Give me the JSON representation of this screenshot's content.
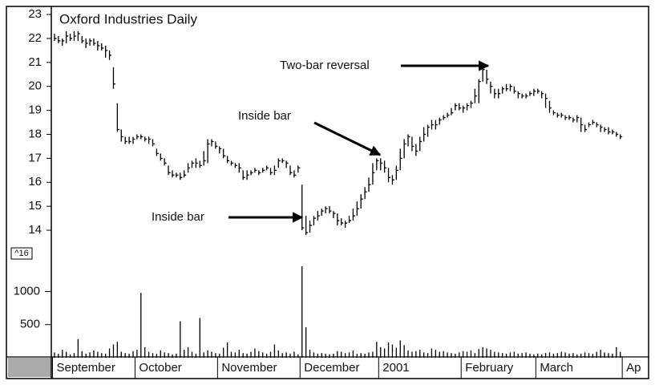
{
  "chart_data": {
    "type": "ohlc",
    "title": "Oxford Industries Daily",
    "color": "#000000",
    "x": [
      0,
      1,
      2,
      3,
      4,
      5,
      6,
      7,
      8,
      9,
      10,
      11,
      12,
      13,
      14,
      15,
      16,
      17,
      18,
      19,
      20,
      21,
      22,
      23,
      24,
      25,
      26,
      27,
      28,
      29,
      30,
      31,
      32,
      33,
      34,
      35,
      36,
      37,
      38,
      39,
      40,
      41,
      42,
      43,
      44,
      45,
      46,
      47,
      48,
      49,
      50,
      51,
      52,
      53,
      54,
      55,
      56,
      57,
      58,
      59,
      60,
      61,
      62,
      63,
      64,
      65,
      66,
      67,
      68,
      69,
      70,
      71,
      72,
      73,
      74,
      75,
      76,
      77,
      78,
      79,
      80,
      81,
      82,
      83,
      84,
      85,
      86,
      87,
      88,
      89,
      90,
      91,
      92,
      93,
      94,
      95,
      96,
      97,
      98,
      99,
      100,
      101,
      102,
      103,
      104,
      105,
      106,
      107,
      108,
      109,
      110,
      111,
      112,
      113,
      114,
      115,
      116,
      117,
      118,
      119,
      120,
      121,
      122,
      123,
      124,
      125,
      126,
      127,
      128,
      129,
      130,
      131,
      132,
      133,
      134,
      135,
      136,
      137,
      138,
      139,
      140,
      141,
      142,
      143,
      144
    ],
    "high": [
      22.2,
      22.1,
      22.0,
      22.3,
      22.2,
      22.3,
      22.3,
      22.1,
      22.0,
      22.0,
      22.0,
      21.9,
      21.8,
      21.7,
      21.5,
      20.8,
      19.3,
      18.2,
      17.9,
      17.9,
      17.9,
      18.0,
      18.0,
      17.9,
      17.9,
      17.8,
      17.4,
      17.2,
      17.0,
      16.7,
      16.5,
      16.4,
      16.4,
      16.5,
      16.8,
      16.9,
      17.0,
      16.9,
      17.3,
      17.8,
      17.8,
      17.7,
      17.5,
      17.4,
      17.1,
      16.9,
      16.8,
      16.8,
      16.5,
      16.5,
      16.5,
      16.6,
      16.5,
      16.6,
      16.7,
      16.6,
      16.7,
      17.0,
      17.0,
      16.9,
      16.7,
      16.5,
      16.7,
      15.9,
      14.6,
      14.4,
      14.6,
      14.8,
      14.9,
      15.0,
      15.0,
      14.8,
      14.7,
      14.5,
      14.4,
      14.6,
      14.9,
      15.2,
      15.5,
      15.8,
      16.2,
      16.8,
      17.0,
      17.0,
      16.9,
      16.6,
      16.3,
      16.7,
      17.4,
      17.8,
      18.0,
      17.9,
      17.6,
      17.9,
      18.3,
      18.4,
      18.6,
      18.6,
      18.7,
      18.8,
      18.9,
      19.1,
      19.3,
      19.3,
      19.2,
      19.3,
      19.4,
      19.9,
      20.3,
      20.8,
      20.7,
      20.2,
      19.9,
      19.9,
      20.0,
      20.1,
      20.1,
      20.0,
      19.8,
      19.7,
      19.7,
      19.8,
      19.9,
      19.9,
      19.8,
      19.7,
      19.4,
      19.0,
      18.9,
      18.9,
      18.8,
      18.8,
      18.7,
      18.8,
      18.7,
      18.4,
      18.5,
      18.6,
      18.5,
      18.4,
      18.3,
      18.3,
      18.2,
      18.1,
      18.0
    ],
    "low": [
      21.9,
      21.8,
      21.7,
      21.8,
      21.9,
      21.9,
      21.9,
      21.8,
      21.6,
      21.7,
      21.7,
      21.5,
      21.5,
      21.2,
      21.1,
      19.9,
      18.1,
      17.7,
      17.6,
      17.6,
      17.6,
      17.8,
      17.8,
      17.7,
      17.6,
      17.5,
      17.1,
      16.9,
      16.7,
      16.3,
      16.2,
      16.2,
      16.1,
      16.2,
      16.4,
      16.6,
      16.6,
      16.6,
      16.7,
      16.8,
      17.5,
      17.4,
      17.2,
      17.0,
      16.8,
      16.7,
      16.6,
      16.4,
      16.1,
      16.1,
      16.3,
      16.4,
      16.3,
      16.4,
      16.5,
      16.3,
      16.3,
      16.6,
      16.8,
      16.6,
      16.3,
      16.2,
      16.4,
      14.0,
      13.8,
      13.9,
      14.2,
      14.4,
      14.6,
      14.7,
      14.7,
      14.5,
      14.2,
      14.2,
      14.1,
      14.3,
      14.4,
      14.6,
      14.9,
      15.3,
      15.6,
      15.9,
      16.5,
      16.5,
      16.4,
      16.0,
      15.9,
      16.1,
      16.5,
      17.0,
      17.5,
      17.3,
      17.1,
      17.3,
      17.7,
      17.9,
      18.2,
      18.2,
      18.4,
      18.6,
      18.7,
      18.8,
      19.0,
      19.0,
      18.9,
      19.0,
      19.1,
      19.3,
      19.3,
      20.2,
      20.1,
      19.7,
      19.5,
      19.5,
      19.7,
      19.8,
      19.8,
      19.7,
      19.5,
      19.5,
      19.5,
      19.6,
      19.6,
      19.7,
      19.5,
      19.1,
      18.9,
      18.8,
      18.7,
      18.7,
      18.6,
      18.6,
      18.5,
      18.5,
      18.1,
      18.1,
      18.3,
      18.4,
      18.3,
      18.1,
      18.1,
      18.0,
      18.0,
      17.9,
      17.8
    ],
    "close": [
      22.0,
      21.9,
      21.9,
      22.1,
      22.0,
      22.1,
      22.2,
      21.9,
      21.8,
      21.9,
      21.8,
      21.7,
      21.6,
      21.5,
      21.3,
      20.1,
      18.2,
      17.9,
      17.7,
      17.7,
      17.8,
      17.9,
      17.9,
      17.8,
      17.8,
      17.6,
      17.2,
      17.0,
      16.8,
      16.4,
      16.3,
      16.3,
      16.2,
      16.3,
      16.6,
      16.8,
      16.8,
      16.7,
      16.9,
      17.6,
      17.7,
      17.5,
      17.4,
      17.1,
      16.9,
      16.8,
      16.7,
      16.6,
      16.2,
      16.3,
      16.4,
      16.5,
      16.4,
      16.5,
      16.6,
      16.4,
      16.5,
      16.9,
      16.9,
      16.8,
      16.4,
      16.3,
      16.6,
      14.1,
      13.9,
      14.2,
      14.5,
      14.6,
      14.8,
      14.9,
      14.8,
      14.7,
      14.4,
      14.3,
      14.3,
      14.4,
      14.6,
      14.9,
      15.3,
      15.6,
      15.9,
      16.4,
      16.9,
      16.8,
      16.6,
      16.2,
      16.1,
      16.5,
      17.0,
      17.6,
      17.9,
      17.5,
      17.3,
      17.7,
      18.0,
      18.3,
      18.4,
      18.4,
      18.6,
      18.7,
      18.8,
      18.9,
      19.2,
      19.1,
      19.1,
      19.2,
      19.3,
      19.6,
      20.2,
      20.7,
      20.3,
      20.0,
      19.7,
      19.7,
      19.9,
      19.9,
      20.0,
      19.8,
      19.7,
      19.6,
      19.6,
      19.7,
      19.8,
      19.8,
      19.7,
      19.5,
      19.1,
      18.9,
      18.8,
      18.8,
      18.7,
      18.7,
      18.6,
      18.7,
      18.4,
      18.2,
      18.4,
      18.5,
      18.4,
      18.3,
      18.2,
      18.1,
      18.1,
      18.0,
      17.9
    ],
    "xlim": [
      -0.4,
      151
    ],
    "xticks": [
      {
        "value": 0,
        "label": "September"
      },
      {
        "value": 21,
        "label": "October"
      },
      {
        "value": 42,
        "label": "November"
      },
      {
        "value": 63,
        "label": "December"
      },
      {
        "value": 83,
        "label": "2001"
      },
      {
        "value": 104,
        "label": "February"
      },
      {
        "value": 123,
        "label": "March"
      },
      {
        "value": 145,
        "label": "Ap"
      }
    ],
    "ylim": [
      13.6,
      23.27
    ],
    "yticks": [
      14,
      15,
      16,
      17,
      18,
      19,
      20,
      21,
      22,
      23
    ],
    "volume": {
      "label": "^16",
      "values": [
        80,
        60,
        120,
        90,
        50,
        70,
        280,
        100,
        60,
        80,
        110,
        90,
        70,
        60,
        140,
        200,
        240,
        90,
        70,
        60,
        100,
        120,
        980,
        160,
        90,
        70,
        60,
        110,
        80,
        70,
        50,
        60,
        550,
        120,
        160,
        90,
        60,
        600,
        80,
        110,
        90,
        70,
        60,
        150,
        230,
        90,
        80,
        120,
        70,
        60,
        90,
        140,
        100,
        80,
        60,
        90,
        200,
        110,
        70,
        80,
        60,
        90,
        50,
        1380,
        460,
        120,
        80,
        60,
        70,
        60,
        50,
        60,
        100,
        90,
        70,
        80,
        110,
        60,
        70,
        60,
        80,
        90,
        240,
        160,
        140,
        230,
        200,
        150,
        260,
        190,
        110,
        90,
        100,
        120,
        80,
        70,
        140,
        120,
        90,
        100,
        80,
        70,
        60,
        80,
        100,
        90,
        110,
        70,
        130,
        160,
        140,
        120,
        90,
        80,
        70,
        60,
        80,
        90,
        60,
        70,
        80,
        60,
        50,
        60,
        50,
        70,
        80,
        60,
        70,
        90,
        80,
        60,
        70,
        50,
        60,
        80,
        70,
        60,
        90,
        120,
        80,
        70,
        60,
        160,
        90
      ],
      "ylim": [
        0,
        1780
      ],
      "yticks": [
        500,
        1000
      ]
    },
    "annotations": [
      "Two-bar reversal",
      "Inside bar",
      "Inside bar"
    ]
  }
}
